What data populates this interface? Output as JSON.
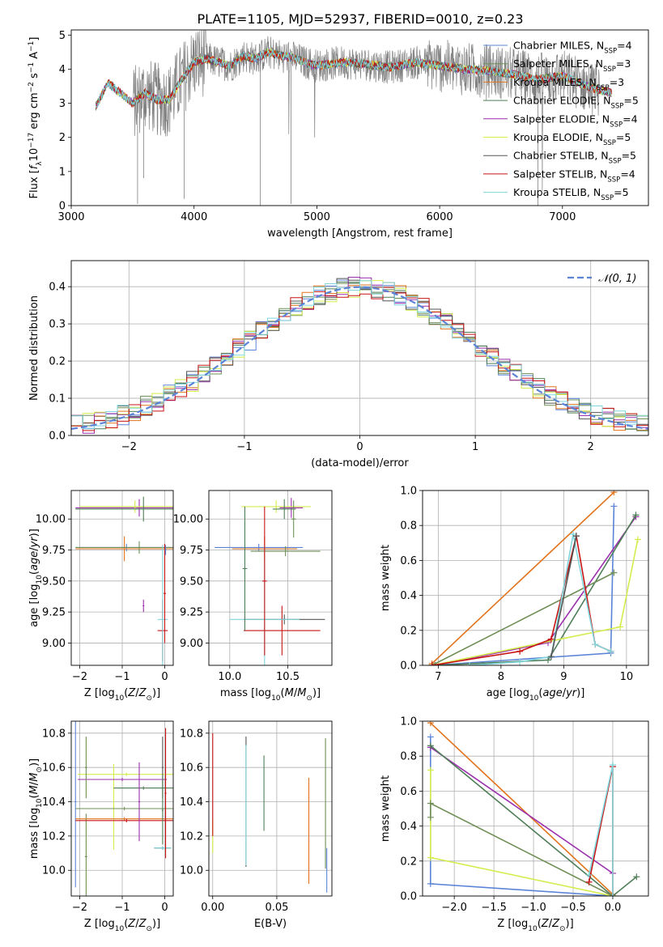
{
  "figure_title": "PLATE=1105, MJD=52937, FIBERID=0010, z=0.23",
  "models": [
    {
      "name": "Chabrier MILES",
      "n": "4",
      "color": "#5b84d8"
    },
    {
      "name": "Salpeter MILES",
      "n": "3",
      "color": "#6f8f57"
    },
    {
      "name": "Kroupa MILES",
      "n": "3",
      "color": "#e2731c"
    },
    {
      "name": "Chabrier ELODIE",
      "n": "5",
      "color": "#4f7e58"
    },
    {
      "name": "Salpeter ELODIE",
      "n": "4",
      "color": "#9b2fae"
    },
    {
      "name": "Kroupa ELODIE",
      "n": "5",
      "color": "#d4ec4c"
    },
    {
      "name": "Chabrier STELIB",
      "n": "5",
      "color": "#555555"
    },
    {
      "name": "Salpeter STELIB",
      "n": "4",
      "color": "#c81414"
    },
    {
      "name": "Kroupa STELIB",
      "n": "5",
      "color": "#7fd6dc"
    }
  ],
  "chart_data": [
    {
      "id": "spectrum",
      "type": "line",
      "xlabel": "wavelength [Angstrom, rest frame]",
      "ylabel": "Flux [f_λ 10^-17 erg cm^-2 s^-1 A^-1]",
      "xlim": [
        3000,
        7700
      ],
      "ylim": [
        0,
        5.15
      ],
      "xticks": [
        "3000",
        "4000",
        "5000",
        "6000",
        "7000"
      ],
      "yticks": [
        "0",
        "1",
        "2",
        "3",
        "4",
        "5"
      ],
      "data_color": "#808080",
      "model_curve": {
        "x": [
          3200,
          3300,
          3400,
          3500,
          3600,
          3700,
          3800,
          3900,
          4000,
          4100,
          4200,
          4300,
          4400,
          4500,
          4600,
          4700,
          4800,
          4900,
          5000,
          5200,
          5400,
          5600,
          5800,
          6000,
          6200,
          6400,
          6600,
          6800,
          7000,
          7200,
          7400
        ],
        "y": [
          2.9,
          3.6,
          3.3,
          3.0,
          3.3,
          3.1,
          3.1,
          3.7,
          4.2,
          4.3,
          4.2,
          4.1,
          4.4,
          4.3,
          4.5,
          4.4,
          4.35,
          4.2,
          4.1,
          4.2,
          4.15,
          4.05,
          4.2,
          4.1,
          4.0,
          3.95,
          3.85,
          3.7,
          3.8,
          3.5,
          3.3
        ]
      },
      "legend": "upper right",
      "grid": false
    },
    {
      "id": "residuals",
      "type": "step",
      "xlabel": "(data-model)/error",
      "ylabel": "Normed distribution",
      "xlim": [
        -2.5,
        2.5
      ],
      "ylim": [
        0,
        0.47
      ],
      "xticks": [
        "−2",
        "−1",
        "0",
        "1",
        "2"
      ],
      "yticks": [
        "0.0",
        "0.1",
        "0.2",
        "0.3",
        "0.4"
      ],
      "legend_label": "𝒩(0, 1)",
      "legend": "upper right",
      "grid": true
    },
    {
      "id": "age_vs_Z",
      "type": "errorbar",
      "xlabel": "Z [log10(Z/Z⊙)]",
      "ylabel": "age  [log10(age/yr)]",
      "xlim": [
        -2.2,
        0.2
      ],
      "ylim": [
        8.82,
        10.23
      ],
      "xticks": [
        "−2",
        "−1",
        "0"
      ],
      "yticks": [
        "9.00",
        "9.25",
        "9.50",
        "9.75",
        "10.00"
      ],
      "grid": true,
      "points": [
        {
          "m": 0,
          "x": -0.9,
          "xerr": 1.2,
          "y": 9.77,
          "yerr": 0.03
        },
        {
          "m": 2,
          "x": -0.95,
          "xerr": 1.15,
          "y": 9.76,
          "yerr": 0.1
        },
        {
          "m": 4,
          "x": -0.6,
          "xerr": 1.5,
          "y": 10.09,
          "yerr": 0.07
        },
        {
          "m": 5,
          "x": -0.7,
          "xerr": 1.3,
          "y": 10.1,
          "yerr": 0.05
        },
        {
          "m": 3,
          "x": -0.5,
          "xerr": 1.6,
          "y": 10.08,
          "yerr": 0.1
        },
        {
          "m": 1,
          "x": -0.6,
          "xerr": 1.5,
          "y": 9.77,
          "yerr": 0.05
        },
        {
          "m": 7,
          "x": -0.05,
          "xerr": 0.12,
          "y": 9.1,
          "yerr": 0.25
        },
        {
          "m": 8,
          "x": -0.05,
          "xerr": 0.12,
          "y": 9.19,
          "yerr": 0.6
        },
        {
          "m": 7,
          "x": 0.0,
          "xerr": 0.03,
          "y": 9.4,
          "yerr": 0.4
        },
        {
          "m": 4,
          "x": -0.5,
          "xerr": 0.02,
          "y": 9.3,
          "yerr": 0.05
        },
        {
          "m": 0,
          "x": 0.02,
          "xerr": 0.02,
          "y": 9.75,
          "yerr": 0.04
        }
      ]
    },
    {
      "id": "age_vs_mass",
      "type": "errorbar",
      "xlabel": "mass [log10(M/M⊙)]",
      "ylabel": "",
      "xlim": [
        9.82,
        10.88
      ],
      "ylim": [
        8.82,
        10.23
      ],
      "xticks": [
        "10.0",
        "10.5"
      ],
      "yticks": [
        "9.00",
        "9.25",
        "9.50",
        "9.75",
        "10.00"
      ],
      "grid": true,
      "points": [
        {
          "m": 0,
          "x": 10.25,
          "xerr": 0.38,
          "y": 9.77,
          "yerr": 0.03
        },
        {
          "m": 2,
          "x": 10.3,
          "xerr": 0.28,
          "y": 9.76,
          "yerr": 0.1
        },
        {
          "m": 4,
          "x": 10.53,
          "xerr": 0.1,
          "y": 10.09,
          "yerr": 0.08
        },
        {
          "m": 5,
          "x": 10.4,
          "xerr": 0.3,
          "y": 10.1,
          "yerr": 0.05
        },
        {
          "m": 3,
          "x": 10.47,
          "xerr": 0.1,
          "y": 10.08,
          "yerr": 0.08
        },
        {
          "m": 1,
          "x": 10.48,
          "xerr": 0.3,
          "y": 9.74,
          "yerr": 0.04
        },
        {
          "m": 6,
          "x": 10.47,
          "xerr": 0.35,
          "y": 9.19,
          "yerr": 0.04
        },
        {
          "m": 7,
          "x": 10.45,
          "xerr": 0.33,
          "y": 9.1,
          "yerr": 0.2
        },
        {
          "m": 8,
          "x": 10.3,
          "xerr": 0.3,
          "y": 9.19,
          "yerr": 0.6
        },
        {
          "m": 3,
          "x": 10.13,
          "xerr": 0.02,
          "y": 9.6,
          "yerr": 0.5
        },
        {
          "m": 7,
          "x": 10.3,
          "xerr": 0.02,
          "y": 9.5,
          "yerr": 0.6
        },
        {
          "m": 1,
          "x": 10.55,
          "xerr": 0.02,
          "y": 10.0,
          "yerr": 0.15
        }
      ]
    },
    {
      "id": "weight_vs_age",
      "type": "line",
      "xlabel": "age  [log10(age/yr)]",
      "ylabel": "mass weight",
      "xlim": [
        6.75,
        10.35
      ],
      "ylim": [
        0,
        1
      ],
      "xticks": [
        "7",
        "8",
        "9",
        "10"
      ],
      "yticks": [
        "0.0",
        "0.2",
        "0.4",
        "0.6",
        "0.8",
        "1.0"
      ],
      "grid": true,
      "series": [
        {
          "m": 2,
          "x": [
            6.9,
            9.8
          ],
          "y": [
            0.01,
            0.99
          ]
        },
        {
          "m": 0,
          "x": [
            6.9,
            9.75,
            9.8
          ],
          "y": [
            0.0,
            0.07,
            0.91
          ]
        },
        {
          "m": 4,
          "x": [
            6.95,
            8.75,
            10.15
          ],
          "y": [
            0.0,
            0.13,
            0.85
          ]
        },
        {
          "m": 3,
          "x": [
            6.95,
            8.75,
            10.15
          ],
          "y": [
            0.0,
            0.03,
            0.86
          ]
        },
        {
          "m": 5,
          "x": [
            6.9,
            9.9,
            10.18
          ],
          "y": [
            0.0,
            0.22,
            0.72
          ]
        },
        {
          "m": 1,
          "x": [
            6.9,
            9.8
          ],
          "y": [
            0.0,
            0.53
          ]
        },
        {
          "m": 7,
          "x": [
            6.9,
            8.3,
            8.8,
            9.2,
            9.5,
            9.75
          ],
          "y": [
            0.0,
            0.08,
            0.15,
            0.74,
            0.12,
            0.08
          ]
        },
        {
          "m": 8,
          "x": [
            7.5,
            8.3,
            8.8,
            9.15,
            9.5,
            9.75
          ],
          "y": [
            0.0,
            0.02,
            0.05,
            0.75,
            0.12,
            0.08
          ]
        },
        {
          "m": 6,
          "x": [
            8.8,
            9.2
          ],
          "y": [
            0.05,
            0.74
          ]
        }
      ]
    },
    {
      "id": "mass_vs_Z",
      "type": "errorbar",
      "xlabel": "Z [log10(Z/Z⊙)]",
      "ylabel": "mass [log10(M/M⊙)]",
      "xlim": [
        -2.2,
        0.2
      ],
      "ylim": [
        9.85,
        10.87
      ],
      "xticks": [
        "−2",
        "−1",
        "0"
      ],
      "yticks": [
        "10.0",
        "10.2",
        "10.4",
        "10.6",
        "10.8"
      ],
      "grid": true,
      "points": [
        {
          "m": 0,
          "x": -2.1,
          "xerr": 0.02,
          "y": 10.4,
          "yerr": 0.5
        },
        {
          "m": 5,
          "x": -0.9,
          "xerr": 1.15,
          "y": 10.56,
          "yerr": 0.01
        },
        {
          "m": 5,
          "x": -1.2,
          "xerr": 0.02,
          "y": 10.37,
          "yerr": 0.25
        },
        {
          "m": 4,
          "x": -1.0,
          "xerr": 1.05,
          "y": 10.53,
          "yerr": 0.01
        },
        {
          "m": 1,
          "x": -0.95,
          "xerr": 1.15,
          "y": 10.36,
          "yerr": 0.01
        },
        {
          "m": 1,
          "x": -1.85,
          "xerr": 0.03,
          "y": 10.6,
          "yerr": 0.18
        },
        {
          "m": 1,
          "x": -1.85,
          "xerr": 0.03,
          "y": 10.08,
          "yerr": 0.25
        },
        {
          "m": 2,
          "x": -0.95,
          "xerr": 1.15,
          "y": 10.3,
          "yerr": 0.01
        },
        {
          "m": 7,
          "x": -0.9,
          "xerr": 1.2,
          "y": 10.29,
          "yerr": 0.01
        },
        {
          "m": 3,
          "x": -0.5,
          "xerr": 0.7,
          "y": 10.48,
          "yerr": 0.01
        },
        {
          "m": 4,
          "x": -0.6,
          "xerr": 0.02,
          "y": 10.4,
          "yerr": 0.23
        },
        {
          "m": 6,
          "x": -0.05,
          "xerr": 0.2,
          "y": 10.13,
          "yerr": 0.01
        },
        {
          "m": 8,
          "x": -0.05,
          "xerr": 0.2,
          "y": 10.13,
          "yerr": 0.01
        },
        {
          "m": 7,
          "x": 0.02,
          "xerr": 0.02,
          "y": 10.45,
          "yerr": 0.38
        },
        {
          "m": 6,
          "x": -0.05,
          "xerr": 0.02,
          "y": 10.6,
          "yerr": 0.18
        },
        {
          "m": 3,
          "x": -0.05,
          "xerr": 0.02,
          "y": 10.35,
          "yerr": 0.2
        }
      ]
    },
    {
      "id": "mass_vs_ebv",
      "type": "errorbar",
      "xlabel": "E(B-V)",
      "ylabel": "",
      "xlim": [
        -0.003,
        0.093
      ],
      "ylim": [
        9.85,
        10.87
      ],
      "xticks": [
        "0.00",
        "0.05"
      ],
      "yticks": [
        "10.0",
        "10.2",
        "10.4",
        "10.6",
        "10.8"
      ],
      "grid": true,
      "points": [
        {
          "m": 5,
          "x": 0.0,
          "xerr": 0.0,
          "y": 10.2,
          "yerr": 0.1
        },
        {
          "m": 7,
          "x": 0.0,
          "xerr": 0.0,
          "y": 10.5,
          "yerr": 0.3
        },
        {
          "m": 6,
          "x": 0.026,
          "xerr": 0.0,
          "y": 10.4,
          "yerr": 0.38
        },
        {
          "m": 8,
          "x": 0.026,
          "xerr": 0.0,
          "y": 10.38,
          "yerr": 0.35
        },
        {
          "m": 3,
          "x": 0.04,
          "xerr": 0.0,
          "y": 10.45,
          "yerr": 0.22
        },
        {
          "m": 2,
          "x": 0.075,
          "xerr": 0.0,
          "y": 10.23,
          "yerr": 0.31
        },
        {
          "m": 1,
          "x": 0.088,
          "xerr": 0.0,
          "y": 10.39,
          "yerr": 0.38
        },
        {
          "m": 0,
          "x": 0.089,
          "xerr": 0.0,
          "y": 10.0,
          "yerr": 0.13
        }
      ]
    },
    {
      "id": "weight_vs_Z",
      "type": "line",
      "xlabel": "Z [log10(Z/Z⊙)]",
      "ylabel": "mass weight",
      "xlim": [
        -2.4,
        0.45
      ],
      "ylim": [
        0,
        1
      ],
      "xticks": [
        "−2.0",
        "−1.5",
        "−1.0",
        "−0.5",
        "0.0"
      ],
      "yticks": [
        "0.0",
        "0.2",
        "0.4",
        "0.6",
        "0.8",
        "1.0"
      ],
      "grid": true,
      "series": [
        {
          "m": 2,
          "x": [
            -2.3,
            0.0
          ],
          "y": [
            0.99,
            0.01
          ]
        },
        {
          "m": 0,
          "x": [
            -2.3,
            -2.3,
            0.0
          ],
          "y": [
            0.91,
            0.07,
            0.0
          ]
        },
        {
          "m": 4,
          "x": [
            -2.3,
            0.0
          ],
          "y": [
            0.85,
            0.13
          ]
        },
        {
          "m": 3,
          "x": [
            -2.3,
            0.0,
            0.3
          ],
          "y": [
            0.86,
            0.0,
            0.11
          ]
        },
        {
          "m": 5,
          "x": [
            -2.3,
            -2.3,
            0.0
          ],
          "y": [
            0.72,
            0.22,
            0.0
          ]
        },
        {
          "m": 1,
          "x": [
            -2.3,
            -2.3,
            0.0
          ],
          "y": [
            0.45,
            0.53,
            0.0
          ]
        },
        {
          "m": 7,
          "x": [
            -0.3,
            0.0,
            0.0
          ],
          "y": [
            0.08,
            0.74,
            0.0
          ]
        },
        {
          "m": 8,
          "x": [
            -0.3,
            0.0,
            0.0
          ],
          "y": [
            0.12,
            0.75,
            0.0
          ]
        }
      ]
    }
  ]
}
